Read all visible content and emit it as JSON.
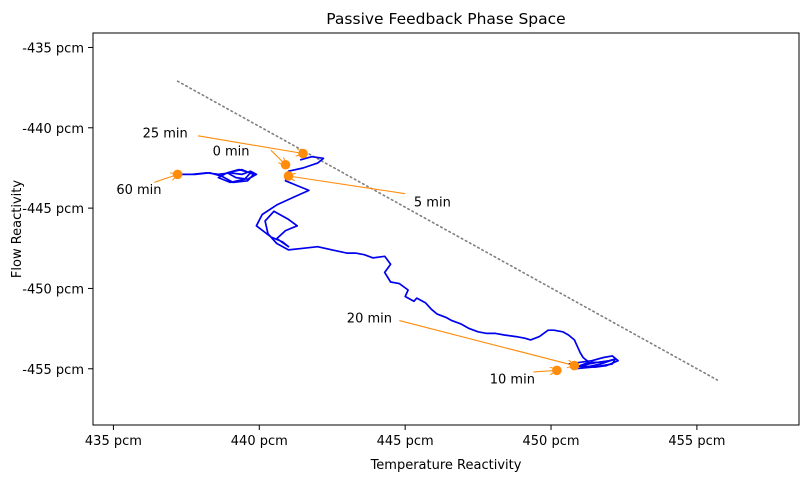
{
  "chart_data": {
    "type": "line",
    "title": "Passive Feedback Phase Space",
    "xlabel": "Temperature Reactivity",
    "ylabel": "Flow Reactivity",
    "xlim": [
      434.3,
      458.5
    ],
    "ylim": [
      -458.5,
      -434.1
    ],
    "x_ticks": [
      {
        "value": 435,
        "label": "435 pcm"
      },
      {
        "value": 440,
        "label": "440 pcm"
      },
      {
        "value": 445,
        "label": "445 pcm"
      },
      {
        "value": 450,
        "label": "450 pcm"
      },
      {
        "value": 455,
        "label": "455 pcm"
      }
    ],
    "y_ticks": [
      {
        "value": -435,
        "label": "-435 pcm"
      },
      {
        "value": -440,
        "label": "-440 pcm"
      },
      {
        "value": -445,
        "label": "-445 pcm"
      },
      {
        "value": -450,
        "label": "-450 pcm"
      },
      {
        "value": -455,
        "label": "-455 pcm"
      }
    ],
    "grid": false,
    "colors": {
      "trajectory": "#0000ee",
      "markers": "#ff8c0a",
      "reference": "#7f7f7f"
    },
    "reference_line": {
      "style": "dotted",
      "x": [
        437.2,
        455.7
      ],
      "y": [
        -437.1,
        -455.7
      ]
    },
    "trajectory": {
      "x": [
        441.4,
        441.8,
        442.2,
        442.0,
        441.5,
        441.0,
        440.9,
        441.3,
        441.7,
        441.2,
        440.6,
        440.1,
        439.9,
        440.4,
        440.8,
        441.0,
        440.6,
        440.9,
        441.3,
        441.0,
        440.5,
        440.2,
        440.3,
        440.6,
        441.0,
        441.5,
        442.0,
        442.5,
        443.0,
        443.3,
        443.6,
        443.9,
        444.3,
        444.5,
        444.3,
        444.5,
        444.8,
        445.1,
        445.0,
        445.3,
        445.4,
        445.7,
        445.9,
        446.1,
        446.4,
        446.6,
        446.9,
        447.2,
        447.5,
        447.8,
        448.1,
        448.4,
        448.8,
        449.1,
        449.3,
        449.6,
        449.9,
        450.1,
        450.4,
        450.6,
        450.8,
        450.9,
        451.0,
        451.1,
        451.3,
        451.0,
        451.6,
        452.0,
        452.2,
        452.1,
        451.4,
        450.8
      ],
      "y": [
        -442.0,
        -441.8,
        -441.9,
        -442.2,
        -442.5,
        -442.7,
        -443.3,
        -443.6,
        -443.9,
        -444.3,
        -444.8,
        -445.4,
        -446.1,
        -446.8,
        -447.1,
        -447.4,
        -446.9,
        -446.4,
        -446.1,
        -445.7,
        -445.2,
        -445.8,
        -446.6,
        -447.2,
        -447.6,
        -447.5,
        -447.4,
        -447.6,
        -447.8,
        -447.8,
        -447.9,
        -448.1,
        -448.0,
        -448.5,
        -449.0,
        -449.6,
        -449.7,
        -450.1,
        -450.5,
        -450.8,
        -450.6,
        -450.9,
        -451.3,
        -451.6,
        -451.8,
        -452.0,
        -452.2,
        -452.5,
        -452.7,
        -452.8,
        -452.8,
        -452.9,
        -453.0,
        -453.1,
        -453.2,
        -453.0,
        -452.6,
        -452.6,
        -452.7,
        -452.9,
        -453.2,
        -453.6,
        -454.0,
        -454.3,
        -454.6,
        -454.8,
        -454.6,
        -454.5,
        -454.4,
        -454.7,
        -454.9,
        -455.0
      ]
    },
    "left_cluster": {
      "x": [
        437.2,
        437.7,
        438.2,
        438.6,
        439.0,
        439.4,
        439.7,
        439.9,
        439.6,
        439.2,
        438.9,
        439.3,
        439.7,
        439.5,
        439.0,
        438.6,
        438.9,
        439.4,
        439.8,
        439.6,
        439.1,
        438.7,
        438.3,
        437.8,
        437.3
      ],
      "y": [
        -442.9,
        -442.9,
        -442.8,
        -442.9,
        -442.8,
        -442.9,
        -442.7,
        -442.9,
        -443.2,
        -443.1,
        -442.8,
        -442.6,
        -442.8,
        -443.2,
        -443.4,
        -443.1,
        -442.8,
        -442.6,
        -442.9,
        -443.3,
        -443.4,
        -443.0,
        -442.8,
        -442.9,
        -442.9
      ]
    },
    "right_cluster": {
      "x": [
        450.6,
        451.0,
        451.4,
        451.8,
        452.1,
        452.3,
        451.9,
        451.5,
        451.1,
        451.4,
        451.8,
        452.2,
        451.7,
        451.2,
        450.8
      ],
      "y": [
        -454.7,
        -454.6,
        -454.5,
        -454.3,
        -454.2,
        -454.5,
        -454.8,
        -454.9,
        -454.8,
        -454.6,
        -454.6,
        -454.4,
        -454.7,
        -454.9,
        -454.8
      ]
    },
    "time_markers": [
      {
        "label": "0 min",
        "x": 440.9,
        "y": -442.3,
        "text_x": 438.4,
        "text_y": -441.4,
        "arrow_from_x": 440.4,
        "arrow_from_y": -441.4
      },
      {
        "label": "5 min",
        "x": 441.0,
        "y": -443.0,
        "text_x": 445.3,
        "text_y": -444.6,
        "arrow_from_x": 445.0,
        "arrow_from_y": -444.1
      },
      {
        "label": "10 min",
        "x": 450.2,
        "y": -455.1,
        "text_x": 447.9,
        "text_y": -455.6,
        "arrow_from_x": 449.4,
        "arrow_from_y": -455.2
      },
      {
        "label": "20 min",
        "x": 450.8,
        "y": -454.8,
        "text_x": 443.0,
        "text_y": -451.8,
        "arrow_from_x": 444.8,
        "arrow_from_y": -452.0
      },
      {
        "label": "25 min",
        "x": 441.5,
        "y": -441.6,
        "text_x": 436.0,
        "text_y": -440.3,
        "arrow_from_x": 437.9,
        "arrow_from_y": -440.5
      },
      {
        "label": "60 min",
        "x": 437.2,
        "y": -442.9,
        "text_x": 435.1,
        "text_y": -443.8,
        "arrow_from_x": 436.4,
        "arrow_from_y": -443.4
      }
    ]
  }
}
